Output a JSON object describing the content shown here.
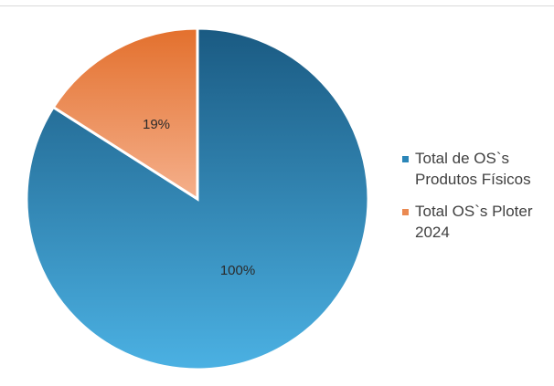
{
  "chart_data": {
    "type": "pie",
    "title": "",
    "slices": [
      {
        "name": "Total de OS`s Produtos Físicos",
        "value": 100,
        "label": "100%",
        "color": "#2b86b8"
      },
      {
        "name": "Total OS`s Ploter 2024",
        "value": 19,
        "label": "19%",
        "color": "#ea8a52"
      }
    ],
    "legend_position": "right"
  }
}
